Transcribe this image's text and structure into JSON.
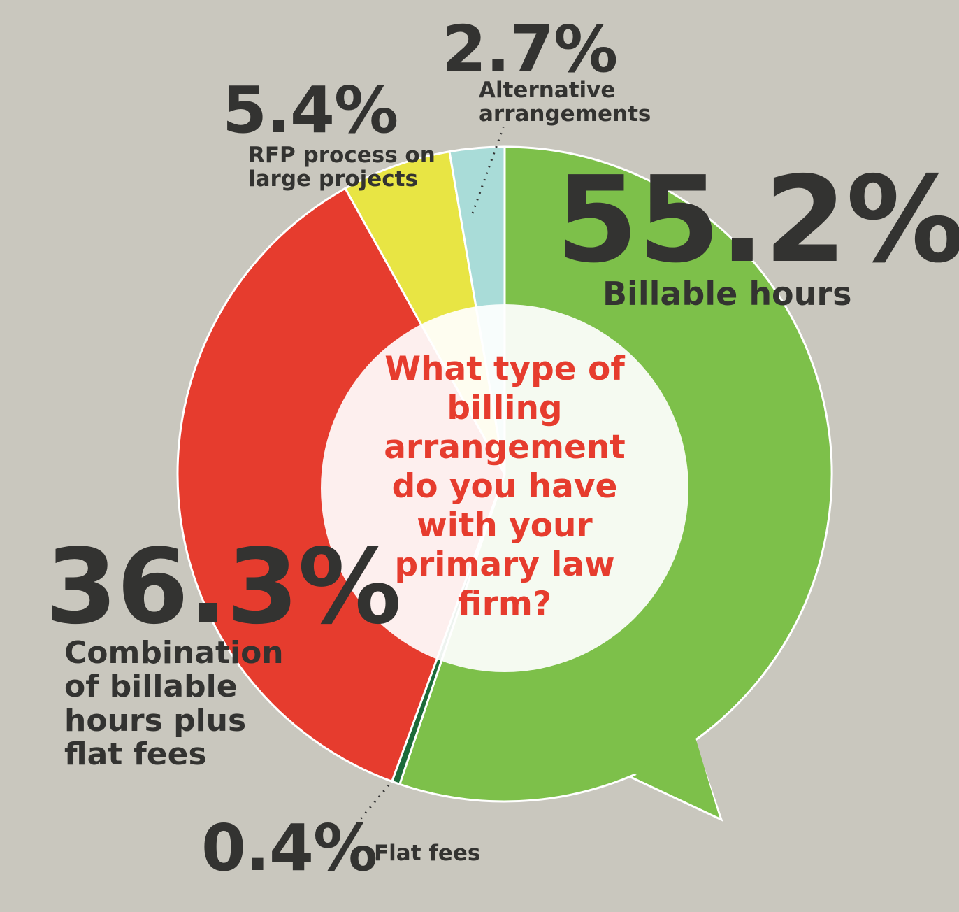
{
  "chart_data": {
    "type": "donut",
    "title": "What type of billing arrangement do you have with your primary law firm?",
    "categories": [
      "Billable hours",
      "Flat fees",
      "Combination of billable hours plus flat fees",
      "RFP process on large projects",
      "Alternative arrangements"
    ],
    "values": [
      55.2,
      0.4,
      36.3,
      5.4,
      2.7
    ],
    "value_labels": [
      "55.2%",
      "0.4%",
      "36.3%",
      "5.4%",
      "2.7%"
    ],
    "colors": [
      "#7dc04a",
      "#1c6a3a",
      "#e63c2e",
      "#e8e544",
      "#a9dcd8"
    ]
  }
}
